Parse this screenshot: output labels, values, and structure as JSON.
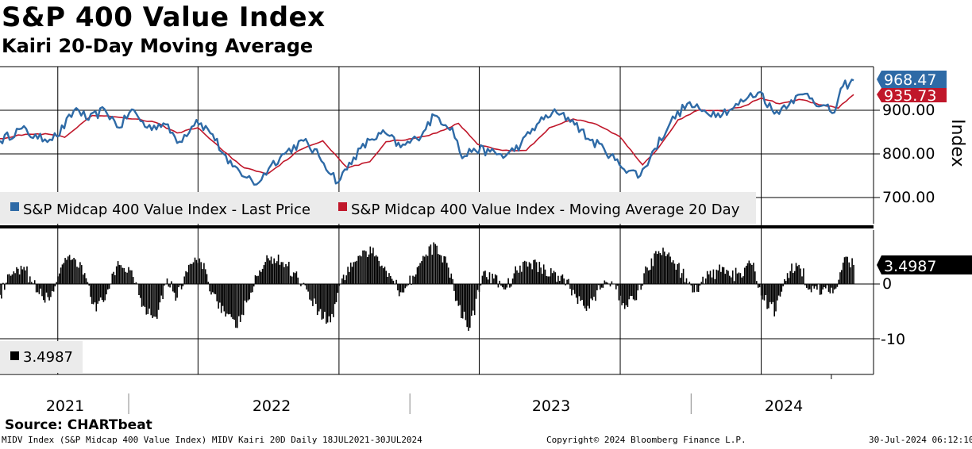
{
  "header": {
    "title": "S&P 400 Value Index",
    "subtitle": "Kairi 20-Day Moving Average"
  },
  "footer": {
    "source": "Source: CHARTbeat",
    "ticker_info": "MIDV Index (S&P Midcap 400 Value Index) MIDV Kairi 20D  Daily 18JUL2021-30JUL2024",
    "copyright": "Copyright© 2024 Bloomberg Finance L.P.",
    "timestamp": "30-Jul-2024 06:12:10"
  },
  "colors": {
    "price": "#2e6aa6",
    "moving_average": "#c0172a",
    "kairi": "#000000",
    "grid": "#000000"
  },
  "chart_data": [
    {
      "type": "line",
      "panel": "upper",
      "axis_label": "Index",
      "yticks": [
        "700.00",
        "800.00",
        "900.00"
      ],
      "ylim": [
        640,
        1000
      ],
      "x_label": "date",
      "x_start": "2021-07-18",
      "x_end": "2024-07-30",
      "legend": [
        {
          "name": "S&P Midcap 400 Value Index - Last Price",
          "color": "#2e6aa6"
        },
        {
          "name": "S&P Midcap 400 Value Index - Moving Average 20 Day",
          "color": "#c0172a"
        }
      ],
      "last_values": {
        "price": "968.47",
        "moving_average": "935.73"
      },
      "series": [
        {
          "name": "S&P Midcap 400 Value Index - Last Price",
          "dates": [
            "2021-07-18",
            "2021-08-15",
            "2021-09-05",
            "2021-09-30",
            "2021-10-25",
            "2021-11-10",
            "2021-12-01",
            "2021-12-20",
            "2022-01-05",
            "2022-01-25",
            "2022-02-15",
            "2022-03-08",
            "2022-03-30",
            "2022-04-20",
            "2022-05-10",
            "2022-05-25",
            "2022-06-16",
            "2022-07-05",
            "2022-07-25",
            "2022-08-16",
            "2022-09-05",
            "2022-09-30",
            "2022-10-20",
            "2022-11-10",
            "2022-11-30",
            "2022-12-20",
            "2023-01-10",
            "2023-02-02",
            "2023-02-25",
            "2023-03-10",
            "2023-03-25",
            "2023-04-15",
            "2023-05-05",
            "2023-05-25",
            "2023-06-15",
            "2023-07-05",
            "2023-07-31",
            "2023-08-20",
            "2023-09-10",
            "2023-09-30",
            "2023-10-27",
            "2023-11-15",
            "2023-12-05",
            "2023-12-27",
            "2024-01-15",
            "2024-02-05",
            "2024-02-25",
            "2024-03-15",
            "2024-03-31",
            "2024-04-18",
            "2024-05-10",
            "2024-05-31",
            "2024-06-18",
            "2024-07-05",
            "2024-07-16",
            "2024-07-25",
            "2024-07-30"
          ],
          "values": [
            830,
            858,
            835,
            840,
            905,
            878,
            902,
            860,
            902,
            860,
            870,
            828,
            878,
            845,
            778,
            760,
            730,
            775,
            805,
            830,
            795,
            735,
            792,
            832,
            848,
            815,
            835,
            888,
            860,
            790,
            812,
            805,
            795,
            822,
            868,
            895,
            878,
            835,
            812,
            775,
            750,
            812,
            872,
            915,
            898,
            893,
            905,
            930,
            942,
            892,
            923,
            938,
            910,
            895,
            955,
            962,
            968.47
          ]
        },
        {
          "name": "S&P Midcap 400 Value Index - Moving Average 20 Day",
          "dates": [
            "2021-07-18",
            "2021-08-20",
            "2021-09-20",
            "2021-10-10",
            "2021-11-15",
            "2021-12-15",
            "2022-01-10",
            "2022-02-05",
            "2022-03-05",
            "2022-04-01",
            "2022-05-05",
            "2022-05-31",
            "2022-07-01",
            "2022-08-10",
            "2022-09-10",
            "2022-10-12",
            "2022-11-10",
            "2022-12-01",
            "2023-01-05",
            "2023-02-05",
            "2023-03-05",
            "2023-03-30",
            "2023-05-01",
            "2023-06-01",
            "2023-07-01",
            "2023-08-01",
            "2023-08-31",
            "2023-09-30",
            "2023-10-30",
            "2023-11-20",
            "2023-12-15",
            "2024-01-10",
            "2024-02-10",
            "2024-03-10",
            "2024-04-01",
            "2024-04-25",
            "2024-05-20",
            "2024-06-20",
            "2024-07-10",
            "2024-07-30"
          ],
          "values": [
            835,
            845,
            845,
            838,
            888,
            885,
            880,
            872,
            848,
            860,
            805,
            768,
            755,
            808,
            830,
            768,
            782,
            828,
            835,
            848,
            870,
            822,
            808,
            808,
            860,
            880,
            868,
            840,
            775,
            815,
            878,
            900,
            898,
            910,
            928,
            915,
            925,
            912,
            905,
            935.73
          ]
        }
      ]
    },
    {
      "type": "bar",
      "panel": "lower",
      "name": "Kairi 20D",
      "yticks": [
        "0",
        "-10"
      ],
      "ylim": [
        -16,
        10
      ],
      "legend": [
        {
          "name": "3.4987",
          "color": "#000000"
        }
      ],
      "last_value": "3.4987",
      "x_ticks": [
        "2021",
        "2022",
        "2023",
        "2024"
      ],
      "year_boundaries": [
        "2022-01-01",
        "2023-01-01",
        "2024-01-01"
      ],
      "series": [
        {
          "name": "Kairi 20D",
          "dates": [
            "2021-07-18",
            "2021-08-01",
            "2021-08-20",
            "2021-09-05",
            "2021-09-20",
            "2021-10-05",
            "2021-10-20",
            "2021-11-05",
            "2021-11-20",
            "2021-12-05",
            "2021-12-20",
            "2022-01-05",
            "2022-01-20",
            "2022-02-05",
            "2022-02-20",
            "2022-03-05",
            "2022-03-20",
            "2022-04-05",
            "2022-04-20",
            "2022-05-05",
            "2022-05-20",
            "2022-06-05",
            "2022-06-20",
            "2022-07-05",
            "2022-07-20",
            "2022-08-05",
            "2022-08-20",
            "2022-09-05",
            "2022-09-20",
            "2022-10-05",
            "2022-10-20",
            "2022-11-05",
            "2022-11-20",
            "2022-12-05",
            "2022-12-20",
            "2023-01-05",
            "2023-01-20",
            "2023-02-05",
            "2023-02-20",
            "2023-03-05",
            "2023-03-20",
            "2023-04-05",
            "2023-04-20",
            "2023-05-05",
            "2023-05-20",
            "2023-06-05",
            "2023-06-20",
            "2023-07-05",
            "2023-07-20",
            "2023-08-05",
            "2023-08-20",
            "2023-09-05",
            "2023-09-20",
            "2023-10-05",
            "2023-10-20",
            "2023-11-05",
            "2023-11-20",
            "2023-12-05",
            "2023-12-20",
            "2024-01-05",
            "2024-01-20",
            "2024-02-05",
            "2024-02-20",
            "2024-03-05",
            "2024-03-20",
            "2024-04-05",
            "2024-04-20",
            "2024-05-05",
            "2024-05-20",
            "2024-06-05",
            "2024-06-20",
            "2024-07-05",
            "2024-07-20",
            "2024-07-30"
          ],
          "values": [
            -2,
            1.5,
            2.5,
            -1.5,
            -3,
            3,
            4.5,
            2,
            -5,
            -1,
            3.5,
            2.5,
            -4,
            -6,
            1,
            -2.5,
            3.5,
            4,
            -1.5,
            -5,
            -8,
            -3,
            2.5,
            5,
            4,
            2,
            -1,
            -5,
            -7,
            1,
            4,
            6,
            5,
            2,
            -1.5,
            1.5,
            5,
            7,
            3,
            -4,
            -8,
            1.5,
            1,
            -1,
            2.5,
            4,
            3,
            2,
            1,
            -2.5,
            -4,
            -1,
            0.5,
            -3.5,
            -3,
            3,
            6,
            5,
            2,
            -1.5,
            1,
            2.5,
            1.5,
            2,
            3.5,
            -3,
            -5,
            2,
            3.5,
            -1.5,
            -1,
            -1,
            5,
            3.4987
          ]
        }
      ]
    }
  ]
}
